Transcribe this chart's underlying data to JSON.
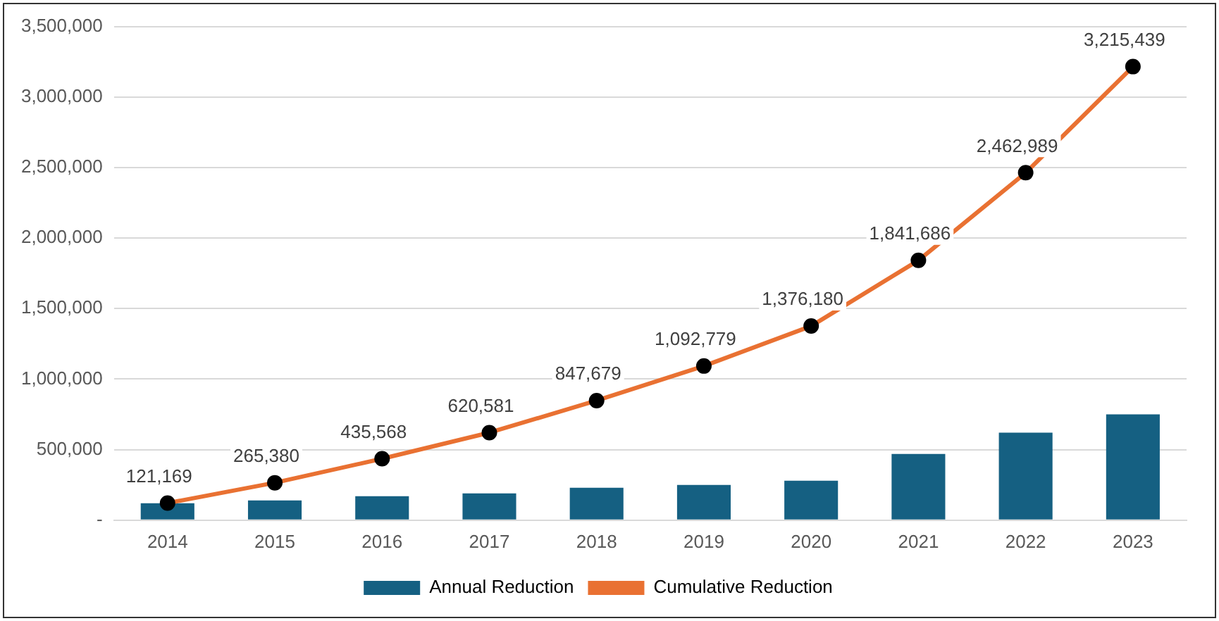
{
  "chart_data": {
    "type": "bar",
    "categories": [
      "2014",
      "2015",
      "2016",
      "2017",
      "2018",
      "2019",
      "2020",
      "2021",
      "2022",
      "2023"
    ],
    "series": [
      {
        "name": "Annual Reduction",
        "color": "#156082",
        "values": [
          120000,
          140000,
          170000,
          190000,
          230000,
          250000,
          280000,
          470000,
          620000,
          750000
        ]
      },
      {
        "name": "Cumulative Reduction",
        "type": "line",
        "color": "#e97132",
        "marker": "circle",
        "values": [
          121169,
          265380,
          435568,
          620581,
          847679,
          1092779,
          1376180,
          1841686,
          2462989,
          3215439
        ],
        "value_labels": [
          "121,169",
          "265,380",
          "435,568",
          "620,581",
          "847,679",
          "1,092,779",
          "1,376,180",
          "1,841,686",
          "2,462,989",
          "3,215,439"
        ]
      }
    ],
    "ylim": [
      0,
      3500000
    ],
    "yticks": [
      {
        "value": 0,
        "label": "-"
      },
      {
        "value": 500000,
        "label": "500,000"
      },
      {
        "value": 1000000,
        "label": "1,000,000"
      },
      {
        "value": 1500000,
        "label": "1,500,000"
      },
      {
        "value": 2000000,
        "label": "2,000,000"
      },
      {
        "value": 2500000,
        "label": "2,500,000"
      },
      {
        "value": 3000000,
        "label": "3,000,000"
      },
      {
        "value": 3500000,
        "label": "3,500,000"
      }
    ],
    "grid": "y",
    "legend": "bottom"
  }
}
